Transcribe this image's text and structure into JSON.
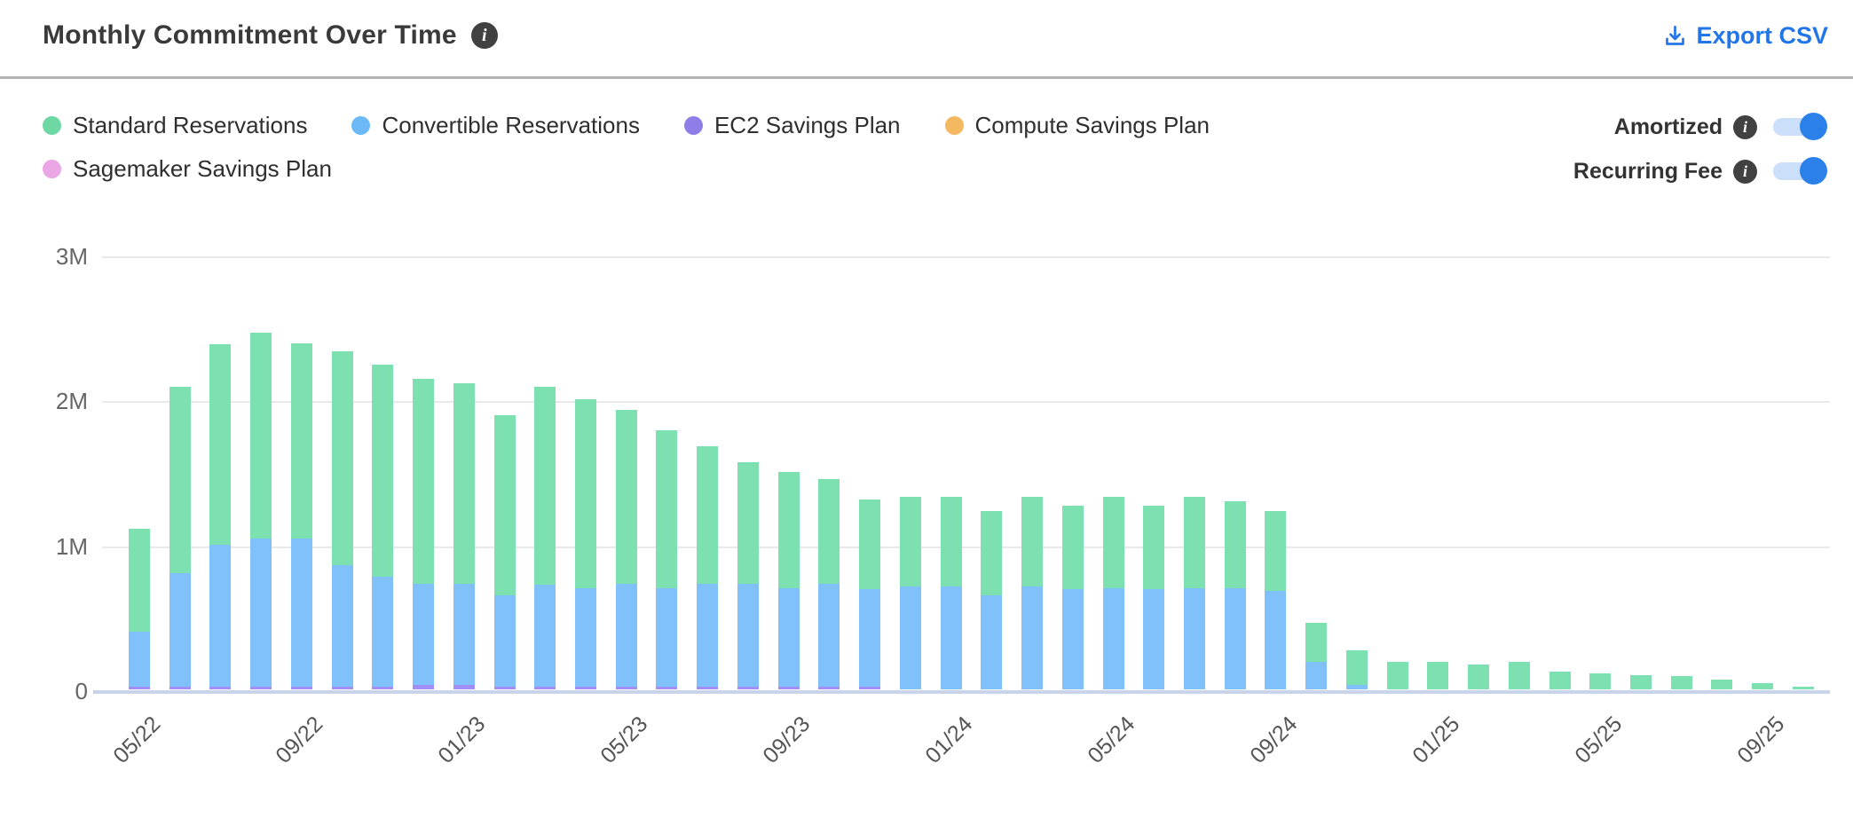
{
  "header": {
    "title": "Monthly Commitment Over Time",
    "export_label": "Export CSV"
  },
  "legend": {
    "items": [
      {
        "label": "Standard Reservations",
        "color": "#6fd7a4"
      },
      {
        "label": "Convertible Reservations",
        "color": "#6db9f8"
      },
      {
        "label": "EC2 Savings Plan",
        "color": "#8f7ee8"
      },
      {
        "label": "Compute Savings Plan",
        "color": "#f4b860"
      },
      {
        "label": "Sagemaker Savings Plan",
        "color": "#eba6e6"
      }
    ]
  },
  "toggles": [
    {
      "label": "Amortized",
      "state": "on"
    },
    {
      "label": "Recurring Fee",
      "state": "on"
    }
  ],
  "chart_data": {
    "type": "bar",
    "stacked": true,
    "title": "Monthly Commitment Over Time",
    "xlabel": "",
    "ylabel": "",
    "ylim": [
      0,
      3000000
    ],
    "y_ticks": [
      "0",
      "1M",
      "2M",
      "3M"
    ],
    "grid": "horizontal",
    "legend_position": "top-left",
    "categories": [
      "05/22",
      "06/22",
      "07/22",
      "08/22",
      "09/22",
      "10/22",
      "11/22",
      "12/22",
      "01/23",
      "02/23",
      "03/23",
      "04/23",
      "05/23",
      "06/23",
      "07/23",
      "08/23",
      "09/23",
      "10/23",
      "11/23",
      "12/23",
      "01/24",
      "02/24",
      "03/24",
      "04/24",
      "05/24",
      "06/24",
      "07/24",
      "08/24",
      "09/24",
      "10/24",
      "11/24",
      "12/24",
      "01/25",
      "02/25",
      "03/25",
      "04/25",
      "05/25",
      "06/25",
      "07/25",
      "08/25",
      "09/25",
      "10/25"
    ],
    "x_tick_indices": [
      0,
      4,
      8,
      12,
      16,
      20,
      24,
      28,
      32,
      36,
      40
    ],
    "x_tick_labels": [
      "05/22",
      "09/22",
      "01/23",
      "05/23",
      "09/23",
      "01/24",
      "05/24",
      "09/24",
      "01/25",
      "05/25",
      "09/25"
    ],
    "units": "M (millions, currency)",
    "series": [
      {
        "name": "EC2 Savings Plan",
        "color": "#a18ff5",
        "stack_position": "bottom",
        "values_M": [
          0.02,
          0.02,
          0.02,
          0.02,
          0.02,
          0.02,
          0.02,
          0.03,
          0.03,
          0.02,
          0.02,
          0.02,
          0.02,
          0.02,
          0.02,
          0.02,
          0.02,
          0.02,
          0.02,
          0,
          0,
          0,
          0,
          0,
          0,
          0,
          0,
          0,
          0,
          0,
          0,
          0,
          0,
          0,
          0,
          0,
          0,
          0,
          0,
          0,
          0,
          0
        ]
      },
      {
        "name": "Convertible Reservations",
        "color": "#80c1fc",
        "stack_position": "middle",
        "values_M": [
          0.38,
          0.78,
          0.98,
          1.02,
          1.02,
          0.84,
          0.76,
          0.7,
          0.7,
          0.63,
          0.7,
          0.68,
          0.71,
          0.68,
          0.71,
          0.71,
          0.68,
          0.71,
          0.67,
          0.71,
          0.71,
          0.65,
          0.71,
          0.69,
          0.7,
          0.69,
          0.7,
          0.7,
          0.68,
          0.19,
          0.03,
          0,
          0,
          0,
          0,
          0,
          0,
          0,
          0,
          0,
          0,
          0
        ]
      },
      {
        "name": "Standard Reservations",
        "color": "#7de0b1",
        "stack_position": "top",
        "values_M": [
          0.71,
          1.29,
          1.38,
          1.42,
          1.35,
          1.47,
          1.46,
          1.41,
          1.38,
          1.24,
          1.37,
          1.3,
          1.2,
          1.09,
          0.95,
          0.84,
          0.8,
          0.72,
          0.62,
          0.62,
          0.62,
          0.58,
          0.62,
          0.58,
          0.63,
          0.58,
          0.63,
          0.6,
          0.55,
          0.27,
          0.24,
          0.19,
          0.19,
          0.17,
          0.19,
          0.12,
          0.11,
          0.1,
          0.09,
          0.07,
          0.04,
          0.02
        ]
      },
      {
        "name": "Compute Savings Plan",
        "color": "#f4b860",
        "stack_position": "above-top",
        "values_M": [
          0,
          0,
          0,
          0,
          0,
          0,
          0,
          0,
          0,
          0,
          0,
          0,
          0,
          0,
          0,
          0,
          0,
          0,
          0,
          0,
          0,
          0,
          0,
          0,
          0,
          0,
          0,
          0,
          0,
          0,
          0,
          0,
          0,
          0,
          0,
          0,
          0,
          0,
          0,
          0,
          0,
          0
        ]
      },
      {
        "name": "Sagemaker Savings Plan",
        "color": "#eba6e6",
        "stack_position": "above-top",
        "values_M": [
          0,
          0,
          0,
          0,
          0,
          0,
          0,
          0,
          0,
          0,
          0,
          0,
          0,
          0,
          0,
          0,
          0,
          0,
          0,
          0,
          0,
          0,
          0,
          0,
          0,
          0,
          0,
          0,
          0,
          0,
          0,
          0,
          0,
          0,
          0,
          0,
          0,
          0,
          0,
          0,
          0,
          0
        ]
      }
    ]
  }
}
